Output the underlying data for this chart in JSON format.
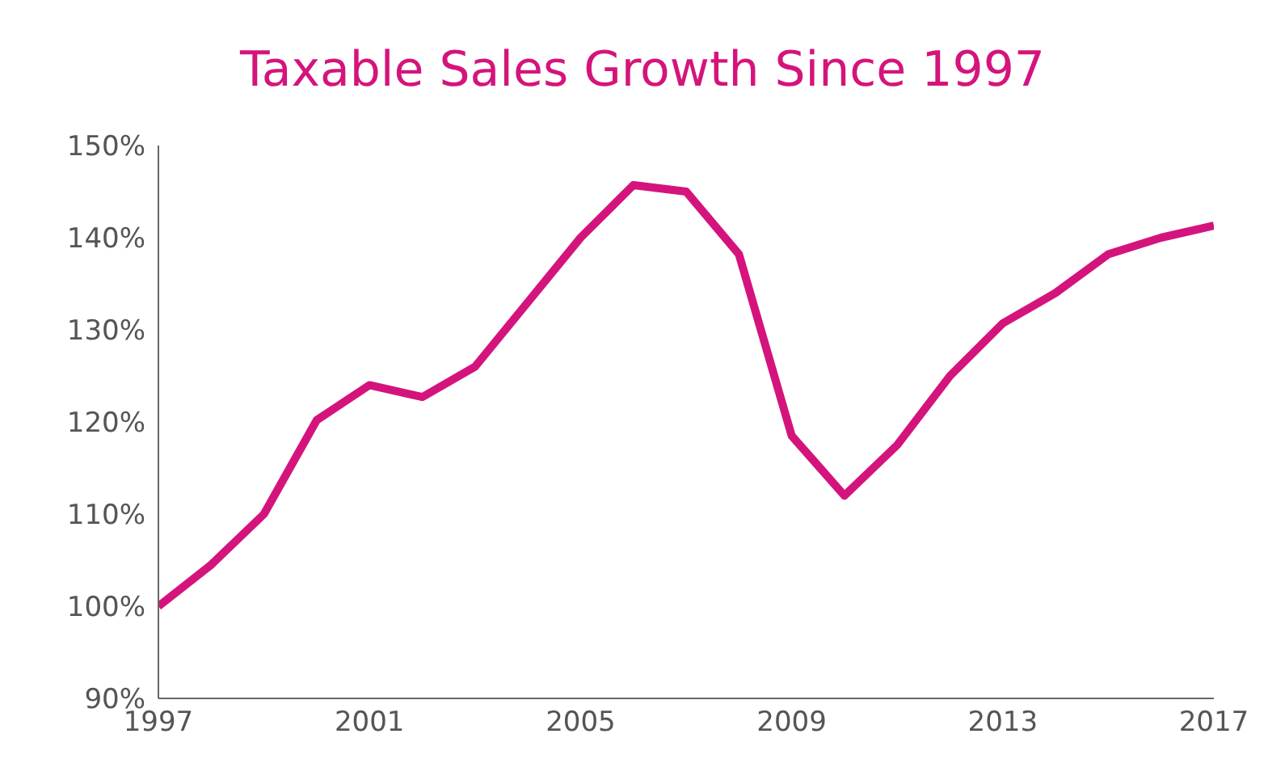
{
  "chart_data": {
    "type": "line",
    "title": "Taxable Sales Growth Since 1997",
    "x": [
      1997,
      1998,
      1999,
      2000,
      2001,
      2002,
      2003,
      2004,
      2005,
      2006,
      2007,
      2008,
      2009,
      2010,
      2011,
      2012,
      2013,
      2014,
      2015,
      2016,
      2017
    ],
    "series": [
      {
        "color": "#d4147c",
        "values": [
          100,
          104.5,
          110,
          120.2,
          124,
          122.7,
          126,
          133,
          140,
          145.7,
          145,
          138.2,
          118.5,
          112,
          117.5,
          125,
          130.7,
          134,
          138.2,
          140,
          141.3
        ]
      }
    ],
    "xlim": [
      1997,
      2017
    ],
    "xticks": [
      1997,
      2001,
      2005,
      2009,
      2013,
      2017
    ],
    "ylim": [
      90,
      150
    ],
    "yticks": [
      {
        "value": 90,
        "label": "90%"
      },
      {
        "value": 100,
        "label": "100%"
      },
      {
        "value": 110,
        "label": "110%"
      },
      {
        "value": 120,
        "label": "120%"
      },
      {
        "value": 130,
        "label": "130%"
      },
      {
        "value": 140,
        "label": "140%"
      },
      {
        "value": 150,
        "label": "150%"
      }
    ],
    "grid": false,
    "marker": "none",
    "line_style": "solid"
  }
}
